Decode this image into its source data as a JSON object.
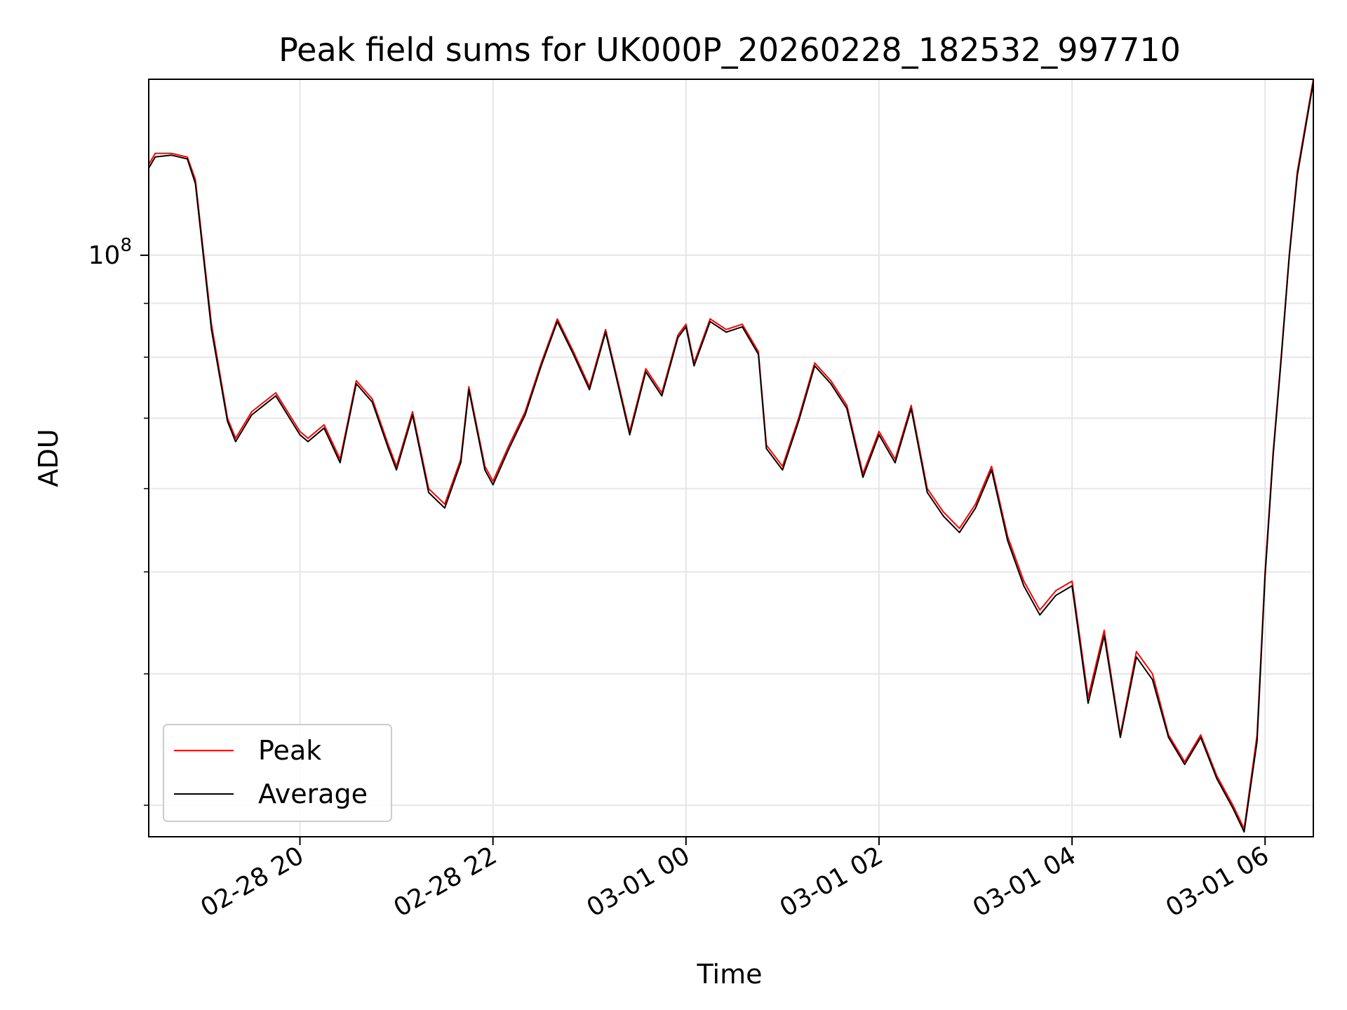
{
  "chart_data": {
    "type": "line",
    "title": "Peak field sums for UK000P_20260228_182532_997710",
    "xlabel": "Time",
    "ylabel": "ADU",
    "yscale": "log",
    "ylim": [
      28000000,
      147000000
    ],
    "xlim": [
      "2026-02-28 18:26",
      "2026-03-01 06:30"
    ],
    "grid": true,
    "legend": "lower-left",
    "x_ticks": [
      "02-28 20",
      "02-28 22",
      "03-01 00",
      "03-01 02",
      "03-01 04",
      "03-01 06"
    ],
    "y_tick_labels": [
      {
        "base": "10",
        "exp": "8"
      }
    ],
    "series": [
      {
        "name": "Peak",
        "color": "#ff0000",
        "points": [
          [
            "2026-02-28 18:26",
            122000000
          ],
          [
            "2026-02-28 18:30",
            125000000
          ],
          [
            "2026-02-28 18:40",
            125000000
          ],
          [
            "2026-02-28 18:50",
            124000000
          ],
          [
            "2026-02-28 18:55",
            118000000
          ],
          [
            "2026-02-28 19:05",
            86000000
          ],
          [
            "2026-02-28 19:15",
            70000000
          ],
          [
            "2026-02-28 19:20",
            67000000
          ],
          [
            "2026-02-28 19:30",
            71000000
          ],
          [
            "2026-02-28 19:45",
            74000000
          ],
          [
            "2026-02-28 20:00",
            68000000
          ],
          [
            "2026-02-28 20:05",
            67000000
          ],
          [
            "2026-02-28 20:15",
            69000000
          ],
          [
            "2026-02-28 20:25",
            64000000
          ],
          [
            "2026-02-28 20:35",
            76000000
          ],
          [
            "2026-02-28 20:45",
            73000000
          ],
          [
            "2026-02-28 20:55",
            66000000
          ],
          [
            "2026-02-28 21:00",
            63000000
          ],
          [
            "2026-02-28 21:10",
            71000000
          ],
          [
            "2026-02-28 21:20",
            60000000
          ],
          [
            "2026-02-28 21:30",
            58000000
          ],
          [
            "2026-02-28 21:40",
            64000000
          ],
          [
            "2026-02-28 21:45",
            75000000
          ],
          [
            "2026-02-28 21:55",
            63000000
          ],
          [
            "2026-02-28 22:00",
            61000000
          ],
          [
            "2026-02-28 22:10",
            66000000
          ],
          [
            "2026-02-28 22:20",
            71000000
          ],
          [
            "2026-02-28 22:30",
            79000000
          ],
          [
            "2026-02-28 22:40",
            87000000
          ],
          [
            "2026-02-28 22:50",
            81000000
          ],
          [
            "2026-02-28 23:00",
            75000000
          ],
          [
            "2026-02-28 23:10",
            85000000
          ],
          [
            "2026-02-28 23:15",
            79000000
          ],
          [
            "2026-02-28 23:25",
            68000000
          ],
          [
            "2026-02-28 23:35",
            78000000
          ],
          [
            "2026-02-28 23:45",
            74000000
          ],
          [
            "2026-02-28 23:55",
            84000000
          ],
          [
            "2026-03-01 00:00",
            86000000
          ],
          [
            "2026-03-01 00:05",
            79000000
          ],
          [
            "2026-03-01 00:15",
            87000000
          ],
          [
            "2026-03-01 00:25",
            85000000
          ],
          [
            "2026-03-01 00:35",
            86000000
          ],
          [
            "2026-03-01 00:45",
            81000000
          ],
          [
            "2026-03-01 00:50",
            66000000
          ],
          [
            "2026-03-01 01:00",
            63000000
          ],
          [
            "2026-03-01 01:10",
            70000000
          ],
          [
            "2026-03-01 01:20",
            79000000
          ],
          [
            "2026-03-01 01:30",
            76000000
          ],
          [
            "2026-03-01 01:40",
            72000000
          ],
          [
            "2026-03-01 01:50",
            62000000
          ],
          [
            "2026-03-01 02:00",
            68000000
          ],
          [
            "2026-03-01 02:10",
            64000000
          ],
          [
            "2026-03-01 02:20",
            72000000
          ],
          [
            "2026-03-01 02:30",
            60000000
          ],
          [
            "2026-03-01 02:40",
            57000000
          ],
          [
            "2026-03-01 02:50",
            55000000
          ],
          [
            "2026-03-01 03:00",
            58000000
          ],
          [
            "2026-03-01 03:10",
            63000000
          ],
          [
            "2026-03-01 03:20",
            54000000
          ],
          [
            "2026-03-01 03:30",
            49000000
          ],
          [
            "2026-03-01 03:40",
            46000000
          ],
          [
            "2026-03-01 03:50",
            48000000
          ],
          [
            "2026-03-01 04:00",
            49000000
          ],
          [
            "2026-03-01 04:10",
            38000000
          ],
          [
            "2026-03-01 04:20",
            44000000
          ],
          [
            "2026-03-01 04:30",
            35000000
          ],
          [
            "2026-03-01 04:40",
            42000000
          ],
          [
            "2026-03-01 04:50",
            40000000
          ],
          [
            "2026-03-01 05:00",
            35000000
          ],
          [
            "2026-03-01 05:10",
            33000000
          ],
          [
            "2026-03-01 05:20",
            35000000
          ],
          [
            "2026-03-01 05:30",
            32000000
          ],
          [
            "2026-03-01 05:40",
            30000000
          ],
          [
            "2026-03-01 05:47",
            28500000
          ],
          [
            "2026-03-01 05:55",
            35000000
          ],
          [
            "2026-03-01 06:00",
            50000000
          ],
          [
            "2026-03-01 06:05",
            65000000
          ],
          [
            "2026-03-01 06:10",
            80000000
          ],
          [
            "2026-03-01 06:15",
            100000000
          ],
          [
            "2026-03-01 06:20",
            120000000
          ],
          [
            "2026-03-01 06:30",
            147000000
          ]
        ]
      },
      {
        "name": "Average",
        "color": "#000000",
        "points": [
          [
            "2026-02-28 18:26",
            121000000
          ],
          [
            "2026-02-28 18:30",
            124000000
          ],
          [
            "2026-02-28 18:40",
            124500000
          ],
          [
            "2026-02-28 18:50",
            123500000
          ],
          [
            "2026-02-28 18:55",
            117000000
          ],
          [
            "2026-02-28 19:05",
            85000000
          ],
          [
            "2026-02-28 19:15",
            69500000
          ],
          [
            "2026-02-28 19:20",
            66500000
          ],
          [
            "2026-02-28 19:30",
            70500000
          ],
          [
            "2026-02-28 19:45",
            73500000
          ],
          [
            "2026-02-28 20:00",
            67500000
          ],
          [
            "2026-02-28 20:05",
            66500000
          ],
          [
            "2026-02-28 20:15",
            68500000
          ],
          [
            "2026-02-28 20:25",
            63500000
          ],
          [
            "2026-02-28 20:35",
            75500000
          ],
          [
            "2026-02-28 20:45",
            72500000
          ],
          [
            "2026-02-28 20:55",
            65500000
          ],
          [
            "2026-02-28 21:00",
            62500000
          ],
          [
            "2026-02-28 21:10",
            70500000
          ],
          [
            "2026-02-28 21:20",
            59500000
          ],
          [
            "2026-02-28 21:30",
            57500000
          ],
          [
            "2026-02-28 21:40",
            63500000
          ],
          [
            "2026-02-28 21:45",
            74500000
          ],
          [
            "2026-02-28 21:55",
            62500000
          ],
          [
            "2026-02-28 22:00",
            60500000
          ],
          [
            "2026-02-28 22:10",
            65500000
          ],
          [
            "2026-02-28 22:20",
            70500000
          ],
          [
            "2026-02-28 22:30",
            78500000
          ],
          [
            "2026-02-28 22:40",
            86500000
          ],
          [
            "2026-02-28 22:50",
            80500000
          ],
          [
            "2026-02-28 23:00",
            74500000
          ],
          [
            "2026-02-28 23:10",
            84500000
          ],
          [
            "2026-02-28 23:15",
            78500000
          ],
          [
            "2026-02-28 23:25",
            67500000
          ],
          [
            "2026-02-28 23:35",
            77500000
          ],
          [
            "2026-02-28 23:45",
            73500000
          ],
          [
            "2026-02-28 23:55",
            83500000
          ],
          [
            "2026-03-01 00:00",
            85500000
          ],
          [
            "2026-03-01 00:05",
            78500000
          ],
          [
            "2026-03-01 00:15",
            86500000
          ],
          [
            "2026-03-01 00:25",
            84500000
          ],
          [
            "2026-03-01 00:35",
            85500000
          ],
          [
            "2026-03-01 00:45",
            80500000
          ],
          [
            "2026-03-01 00:50",
            65500000
          ],
          [
            "2026-03-01 01:00",
            62500000
          ],
          [
            "2026-03-01 01:10",
            69500000
          ],
          [
            "2026-03-01 01:20",
            78500000
          ],
          [
            "2026-03-01 01:30",
            75500000
          ],
          [
            "2026-03-01 01:40",
            71500000
          ],
          [
            "2026-03-01 01:50",
            61500000
          ],
          [
            "2026-03-01 02:00",
            67500000
          ],
          [
            "2026-03-01 02:10",
            63500000
          ],
          [
            "2026-03-01 02:20",
            71500000
          ],
          [
            "2026-03-01 02:30",
            59500000
          ],
          [
            "2026-03-01 02:40",
            56500000
          ],
          [
            "2026-03-01 02:50",
            54500000
          ],
          [
            "2026-03-01 03:00",
            57500000
          ],
          [
            "2026-03-01 03:10",
            62500000
          ],
          [
            "2026-03-01 03:20",
            53500000
          ],
          [
            "2026-03-01 03:30",
            48500000
          ],
          [
            "2026-03-01 03:40",
            45500000
          ],
          [
            "2026-03-01 03:50",
            47500000
          ],
          [
            "2026-03-01 04:00",
            48500000
          ],
          [
            "2026-03-01 04:10",
            37500000
          ],
          [
            "2026-03-01 04:20",
            43500000
          ],
          [
            "2026-03-01 04:30",
            34800000
          ],
          [
            "2026-03-01 04:40",
            41500000
          ],
          [
            "2026-03-01 04:50",
            39500000
          ],
          [
            "2026-03-01 05:00",
            34800000
          ],
          [
            "2026-03-01 05:10",
            32800000
          ],
          [
            "2026-03-01 05:20",
            34800000
          ],
          [
            "2026-03-01 05:30",
            31800000
          ],
          [
            "2026-03-01 05:40",
            29800000
          ],
          [
            "2026-03-01 05:47",
            28300000
          ],
          [
            "2026-03-01 05:55",
            34500000
          ],
          [
            "2026-03-01 06:00",
            49500000
          ],
          [
            "2026-03-01 06:05",
            64500000
          ],
          [
            "2026-03-01 06:10",
            79500000
          ],
          [
            "2026-03-01 06:15",
            99500000
          ],
          [
            "2026-03-01 06:20",
            119000000
          ],
          [
            "2026-03-01 06:30",
            146000000
          ]
        ]
      }
    ]
  }
}
